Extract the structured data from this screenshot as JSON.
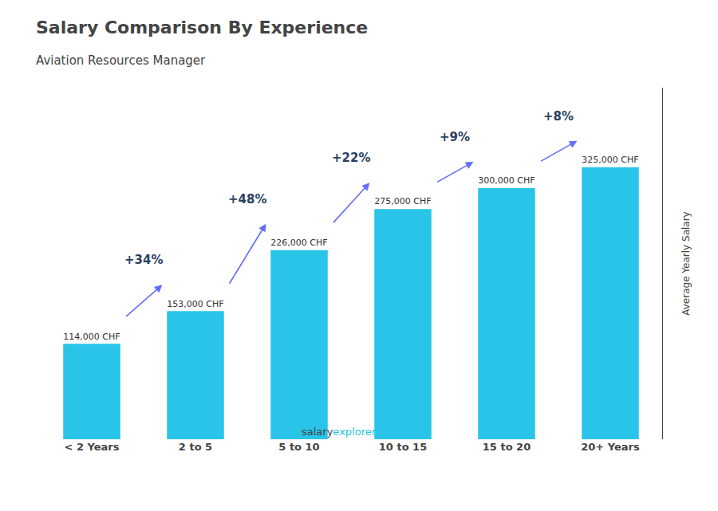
{
  "chart_data": {
    "type": "bar",
    "title": "Salary Comparison By Experience",
    "subtitle": "Aviation Resources Manager",
    "categories": [
      "< 2 Years",
      "2 to 5",
      "5 to 10",
      "10 to 15",
      "15 to 20",
      "20+ Years"
    ],
    "values": [
      114000,
      153000,
      226000,
      275000,
      300000,
      325000
    ],
    "value_labels": [
      "114,000 CHF",
      "153,000 CHF",
      "226,000 CHF",
      "275,000 CHF",
      "300,000 CHF",
      "325,000 CHF"
    ],
    "data_labels": true,
    "color": "#29c4e8",
    "ylabel": "Average Yearly Salary",
    "ylim": [
      0,
      420000
    ],
    "yticks": [],
    "tick_labels": "x",
    "grid": false,
    "annotations": [
      "+34%",
      "+48%",
      "+22%",
      "+9%",
      "+8%"
    ],
    "footer": [
      "salary",
      "explorer.com"
    ]
  }
}
